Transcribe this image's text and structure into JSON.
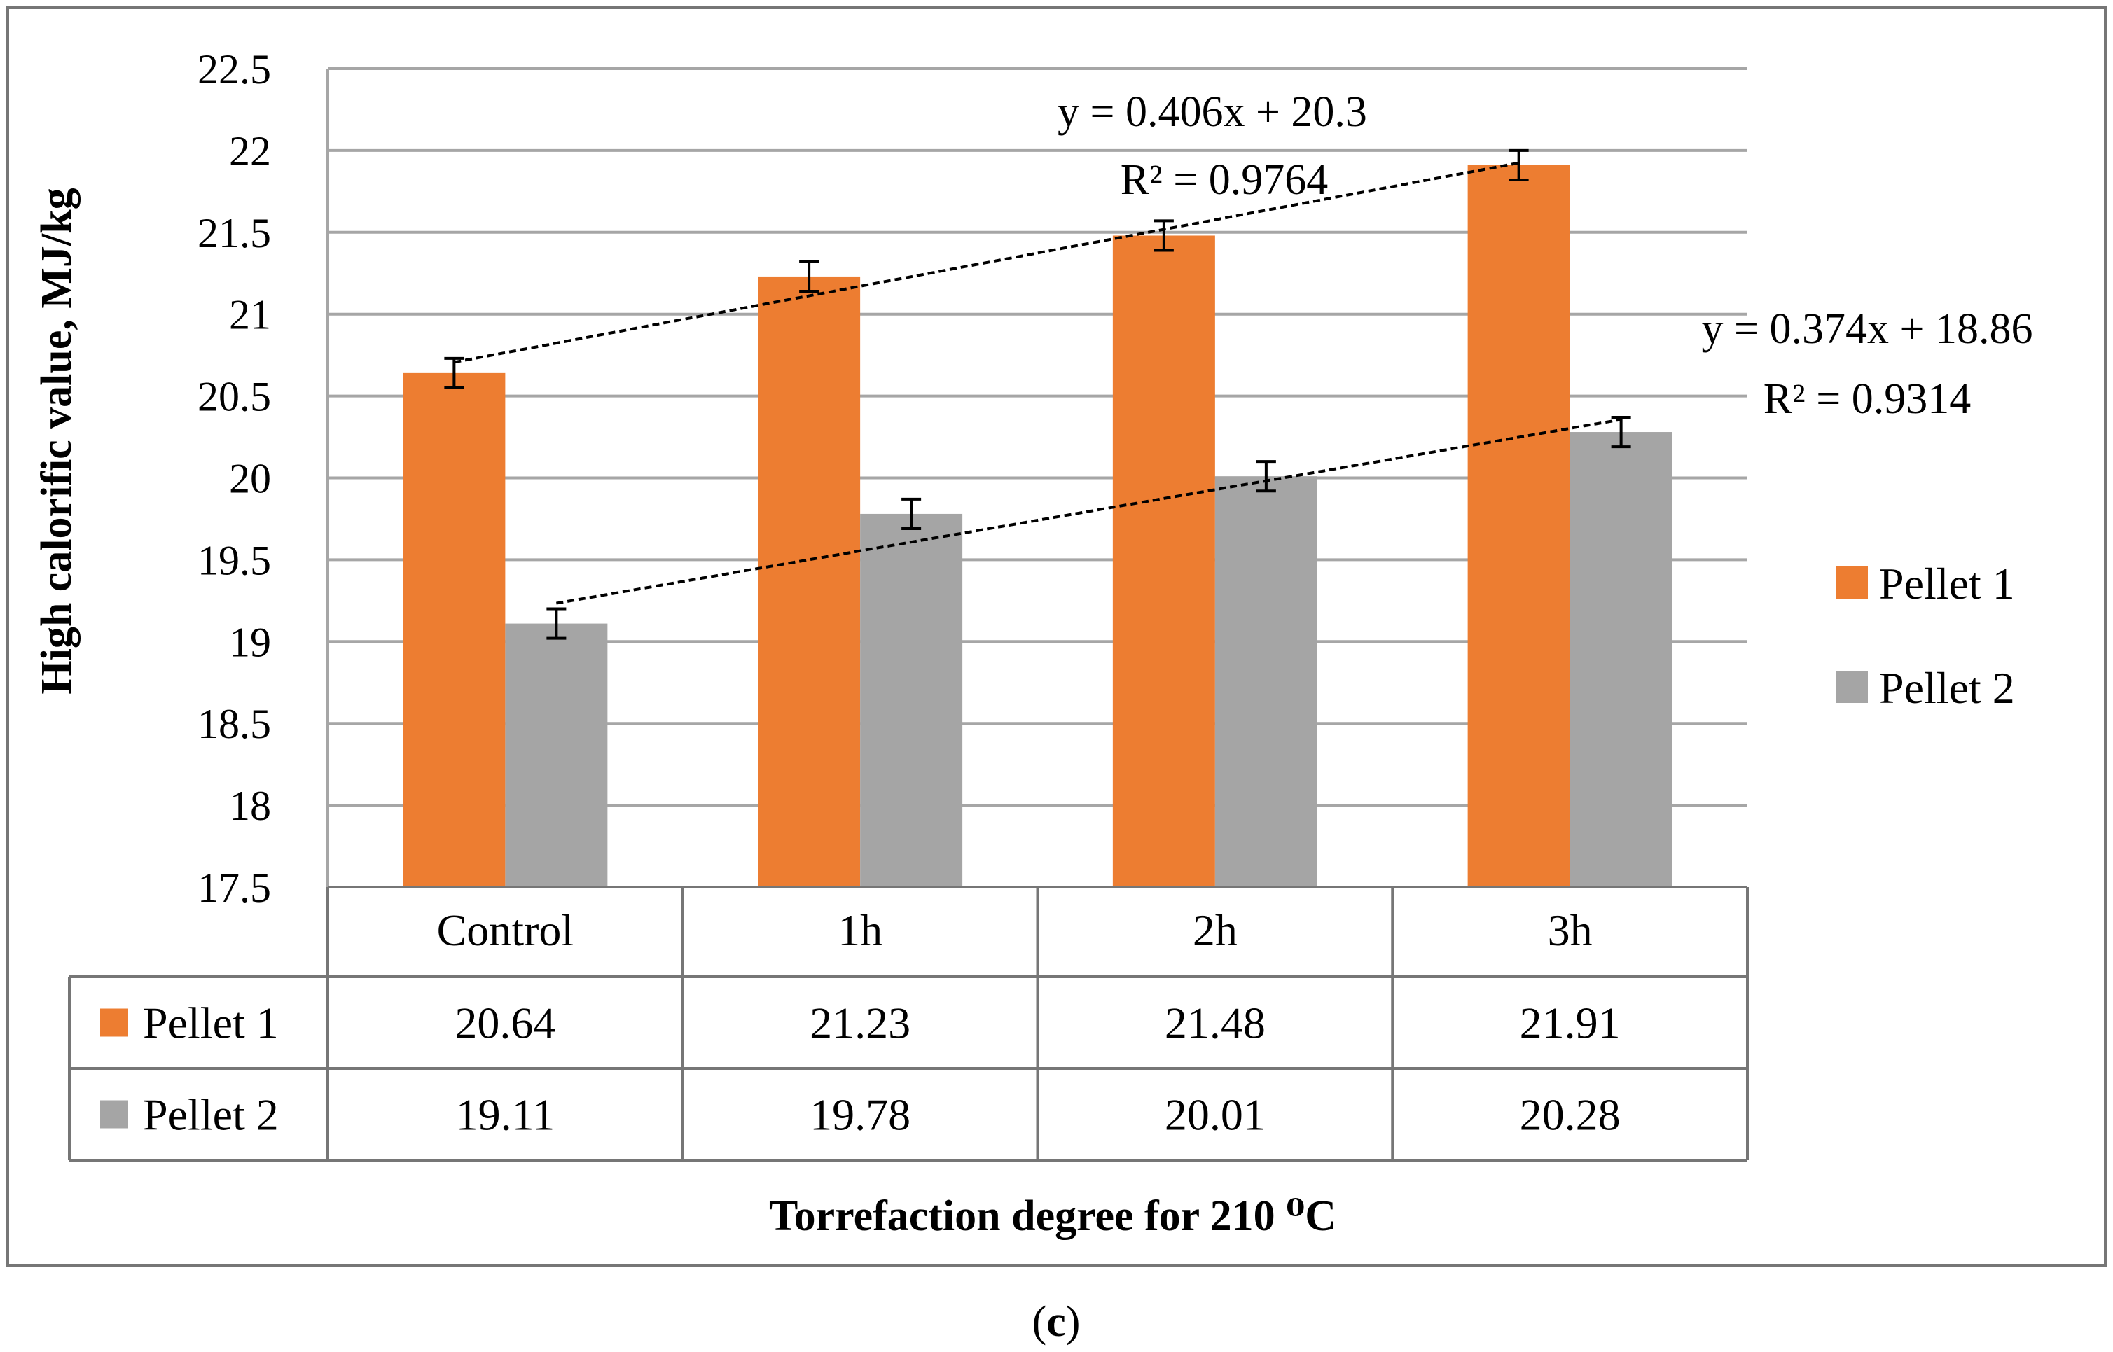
{
  "chart_data": {
    "type": "bar",
    "categories": [
      "Control",
      "1h",
      "2h",
      "3h"
    ],
    "series": [
      {
        "name": "Pellet 1",
        "values": [
          20.64,
          21.23,
          21.48,
          21.91
        ],
        "error": [
          0.09,
          0.09,
          0.09,
          0.09
        ],
        "color": "#ed7d31"
      },
      {
        "name": "Pellet 2",
        "values": [
          19.11,
          19.78,
          20.01,
          20.28
        ],
        "error": [
          0.09,
          0.09,
          0.09,
          0.09
        ],
        "color": "#a5a5a5"
      }
    ],
    "ylim": [
      17.5,
      22.5
    ],
    "yticks": [
      "17.5",
      "18",
      "18.5",
      "19",
      "19.5",
      "20",
      "20.5",
      "21",
      "21.5",
      "22",
      "22.5"
    ],
    "ylabel": "High calorific value, MJ/kg",
    "xlabel": "Torrefaction degree for 210 ⁰C",
    "data_table": {
      "rows": [
        {
          "label": "Pellet 1",
          "values": [
            "20.64",
            "21.23",
            "21.48",
            "21.91"
          ]
        },
        {
          "label": "Pellet 2",
          "values": [
            "19.11",
            "19.78",
            "20.01",
            "20.28"
          ]
        }
      ]
    },
    "trendlines": [
      {
        "series": "Pellet 1",
        "equation": "y = 0.406x + 20.3",
        "r2": "R² = 0.9764",
        "slope": 0.406,
        "intercept": 20.3
      },
      {
        "series": "Pellet 2",
        "equation": "y = 0.374x + 18.86",
        "r2": "R² = 0.9314",
        "slope": 0.374,
        "intercept": 18.86
      }
    ],
    "legend": {
      "position": "right",
      "items": [
        "Pellet 1",
        "Pellet 2"
      ]
    },
    "grid": true
  },
  "caption": {
    "open": "(",
    "letter": "c",
    "close": ")"
  }
}
